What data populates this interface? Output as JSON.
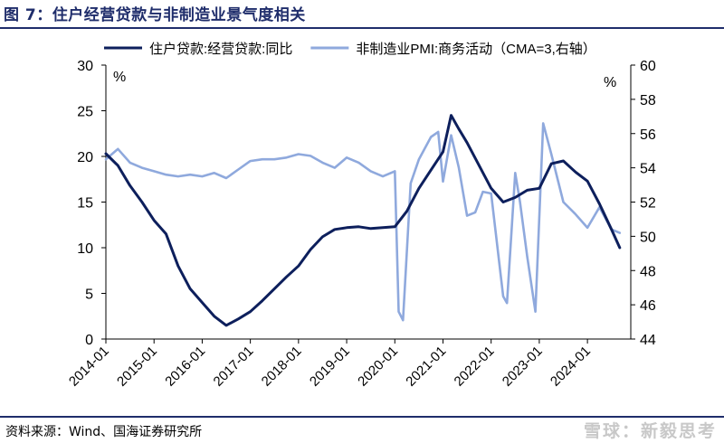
{
  "header": {
    "title": "图 7：住户经营贷款与非制造业景气度相关"
  },
  "footer": {
    "source": "资料来源：Wind、国海证券研究所",
    "watermark": "雪球：新毅思考"
  },
  "chart_data": {
    "type": "line",
    "title": "",
    "xlabel": "",
    "left_unit": "%",
    "right_unit": "%",
    "ylim_left": [
      0,
      30
    ],
    "ylim_right": [
      44,
      60
    ],
    "yticks_left": [
      0,
      5,
      10,
      15,
      20,
      25,
      30
    ],
    "yticks_right": [
      44,
      46,
      48,
      50,
      52,
      54,
      56,
      58,
      60
    ],
    "xticks": [
      "2014-01",
      "2015-01",
      "2016-01",
      "2017-01",
      "2018-01",
      "2019-01",
      "2020-01",
      "2021-01",
      "2022-01",
      "2023-01",
      "2024-01"
    ],
    "grid": false,
    "legend_position": "top",
    "series": [
      {
        "name": "住户贷款:经营贷款:同比",
        "axis": "left",
        "color": "#0d1f5c",
        "x": [
          2014.0,
          2014.25,
          2014.5,
          2014.75,
          2015.0,
          2015.25,
          2015.5,
          2015.75,
          2016.0,
          2016.25,
          2016.5,
          2016.75,
          2017.0,
          2017.25,
          2017.5,
          2017.75,
          2018.0,
          2018.25,
          2018.5,
          2018.75,
          2019.0,
          2019.25,
          2019.5,
          2019.75,
          2020.0,
          2020.25,
          2020.5,
          2020.75,
          2021.0,
          2021.17,
          2021.33,
          2021.5,
          2021.75,
          2022.0,
          2022.25,
          2022.5,
          2022.75,
          2023.0,
          2023.25,
          2023.5,
          2023.75,
          2024.0,
          2024.25,
          2024.5,
          2024.67
        ],
        "values": [
          20.3,
          19.0,
          16.8,
          15.0,
          13.0,
          11.5,
          8.0,
          5.5,
          4.0,
          2.5,
          1.5,
          2.2,
          3.0,
          4.2,
          5.5,
          6.8,
          8.0,
          9.8,
          11.2,
          12.0,
          12.2,
          12.3,
          12.1,
          12.2,
          12.3,
          14.0,
          16.5,
          18.5,
          20.5,
          24.5,
          23.0,
          21.5,
          19.0,
          16.5,
          15.0,
          15.5,
          16.3,
          16.5,
          19.2,
          19.5,
          18.3,
          17.3,
          14.8,
          12.0,
          10.0
        ]
      },
      {
        "name": "非制造业PMI:商务活动（CMA=3,右轴）",
        "axis": "right",
        "color": "#8fa9dd",
        "x": [
          2014.0,
          2014.25,
          2014.5,
          2014.75,
          2015.0,
          2015.25,
          2015.5,
          2015.75,
          2016.0,
          2016.25,
          2016.5,
          2016.75,
          2017.0,
          2017.25,
          2017.5,
          2017.75,
          2018.0,
          2018.25,
          2018.5,
          2018.75,
          2019.0,
          2019.25,
          2019.5,
          2019.75,
          2020.0,
          2020.08,
          2020.17,
          2020.33,
          2020.5,
          2020.75,
          2020.9,
          2021.0,
          2021.17,
          2021.33,
          2021.5,
          2021.67,
          2021.83,
          2022.0,
          2022.25,
          2022.33,
          2022.5,
          2022.6,
          2022.75,
          2022.92,
          2023.08,
          2023.25,
          2023.5,
          2023.75,
          2024.0,
          2024.25,
          2024.5,
          2024.67
        ],
        "values": [
          54.5,
          55.1,
          54.3,
          54.0,
          53.8,
          53.6,
          53.5,
          53.6,
          53.5,
          53.7,
          53.4,
          53.9,
          54.4,
          54.5,
          54.5,
          54.6,
          54.8,
          54.7,
          54.3,
          54.0,
          54.6,
          54.3,
          53.8,
          53.5,
          53.8,
          45.6,
          45.1,
          53.1,
          54.5,
          55.8,
          56.1,
          53.2,
          55.9,
          54.0,
          51.2,
          51.4,
          52.6,
          52.5,
          46.5,
          46.1,
          53.7,
          52.0,
          48.8,
          45.6,
          56.6,
          54.8,
          52.0,
          51.3,
          50.5,
          51.7,
          50.4,
          50.2
        ]
      }
    ]
  }
}
